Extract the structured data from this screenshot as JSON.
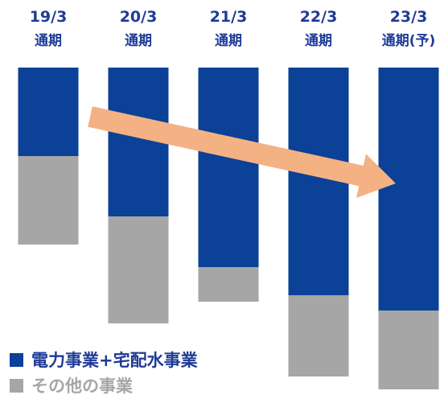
{
  "chart_data": {
    "type": "bar",
    "stacked": true,
    "categories": [
      {
        "period": "19/3",
        "label": "通期"
      },
      {
        "period": "20/3",
        "label": "通期"
      },
      {
        "period": "21/3",
        "label": "通期"
      },
      {
        "period": "22/3",
        "label": "通期"
      },
      {
        "period": "23/3",
        "label": "通期(予)"
      }
    ],
    "series": [
      {
        "name": "電力事業+宅配水事業",
        "color": "#0b4197",
        "values": [
          110,
          185,
          248,
          283,
          302
        ]
      },
      {
        "name": "その他の事業",
        "color": "#a6a6a6",
        "values": [
          110,
          133,
          43,
          101,
          98
        ]
      }
    ],
    "legend_markers": [
      "■",
      "■"
    ],
    "trend_arrow": {
      "color": "#f4b183"
    },
    "ylim": [
      0,
      400
    ],
    "grid": false,
    "axes_visible": false,
    "legend_position": "bottom-left"
  }
}
